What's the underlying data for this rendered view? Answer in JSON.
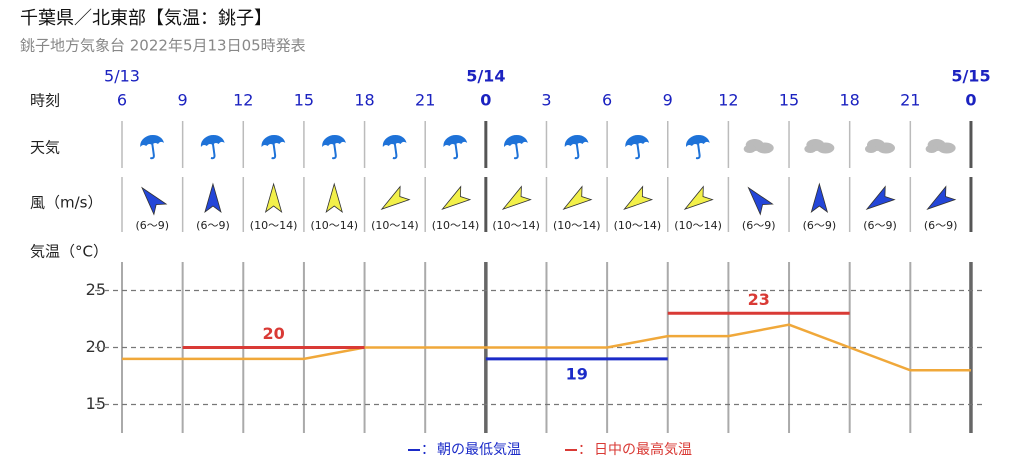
{
  "header": {
    "title": "千葉県／北東部【気温：銚子】",
    "subtitle": "銚子地方気象台 2022年5月13日05時発表"
  },
  "row_labels": {
    "time": "時刻",
    "weather": "天気",
    "wind": "風（m/s）",
    "temperature": "気温（°C）"
  },
  "weather": [
    "rain",
    "rain",
    "rain",
    "rain",
    "rain",
    "rain",
    "rain",
    "rain",
    "rain",
    "rain",
    "cloud",
    "cloud",
    "cloud",
    "cloud"
  ],
  "wind": [
    {
      "speed": "(6〜9)",
      "direction": "南東",
      "color": "#2446d8"
    },
    {
      "speed": "(6〜9)",
      "direction": "南",
      "color": "#2446d8"
    },
    {
      "speed": "(10〜14)",
      "direction": "南",
      "color": "#f2f04a"
    },
    {
      "speed": "(10〜14)",
      "direction": "南",
      "color": "#f2f04a"
    },
    {
      "speed": "(10〜14)",
      "direction": "北東",
      "color": "#f2f04a"
    },
    {
      "speed": "(10〜14)",
      "direction": "北東",
      "color": "#f2f04a"
    },
    {
      "speed": "(10〜14)",
      "direction": "北東",
      "color": "#f2f04a"
    },
    {
      "speed": "(10〜14)",
      "direction": "北東",
      "color": "#f2f04a"
    },
    {
      "speed": "(10〜14)",
      "direction": "北東",
      "color": "#f2f04a"
    },
    {
      "speed": "(10〜14)",
      "direction": "北東",
      "color": "#f2f04a"
    },
    {
      "speed": "(6〜9)",
      "direction": "南東",
      "color": "#2446d8"
    },
    {
      "speed": "(6〜9)",
      "direction": "南",
      "color": "#2446d8"
    },
    {
      "speed": "(6〜9)",
      "direction": "北東",
      "color": "#2446d8"
    },
    {
      "speed": "(6〜9)",
      "direction": "北東",
      "color": "#2446d8"
    }
  ],
  "chart_data": {
    "type": "line",
    "dates": [
      "5/13",
      null,
      null,
      null,
      null,
      null,
      "5/14",
      null,
      null,
      null,
      null,
      null,
      null,
      null,
      "5/15"
    ],
    "categories": [
      "6",
      "9",
      "12",
      "15",
      "18",
      "21",
      "0",
      "3",
      "6",
      "9",
      "12",
      "15",
      "18",
      "21",
      "0"
    ],
    "series": [
      {
        "color": "#f0a83a",
        "values": [
          19,
          19,
          19,
          19,
          20,
          20,
          20,
          20,
          20,
          21,
          21,
          22,
          20,
          18,
          18
        ]
      },
      {
        "name": "日中の最高気温",
        "color": "#d93a35",
        "values": [
          null,
          20,
          20,
          20,
          20,
          null,
          null,
          null,
          null,
          23,
          23,
          23,
          23,
          null,
          null
        ]
      },
      {
        "name": "朝の最低気温",
        "color": "#1b2bc8",
        "values": [
          null,
          null,
          null,
          null,
          null,
          null,
          19,
          19,
          19,
          19,
          null,
          null,
          null,
          null,
          null
        ]
      }
    ],
    "ylim": [
      12.5,
      27.5
    ],
    "yticks": [
      15,
      20,
      25
    ],
    "grid": true,
    "legend_separator": "："
  }
}
